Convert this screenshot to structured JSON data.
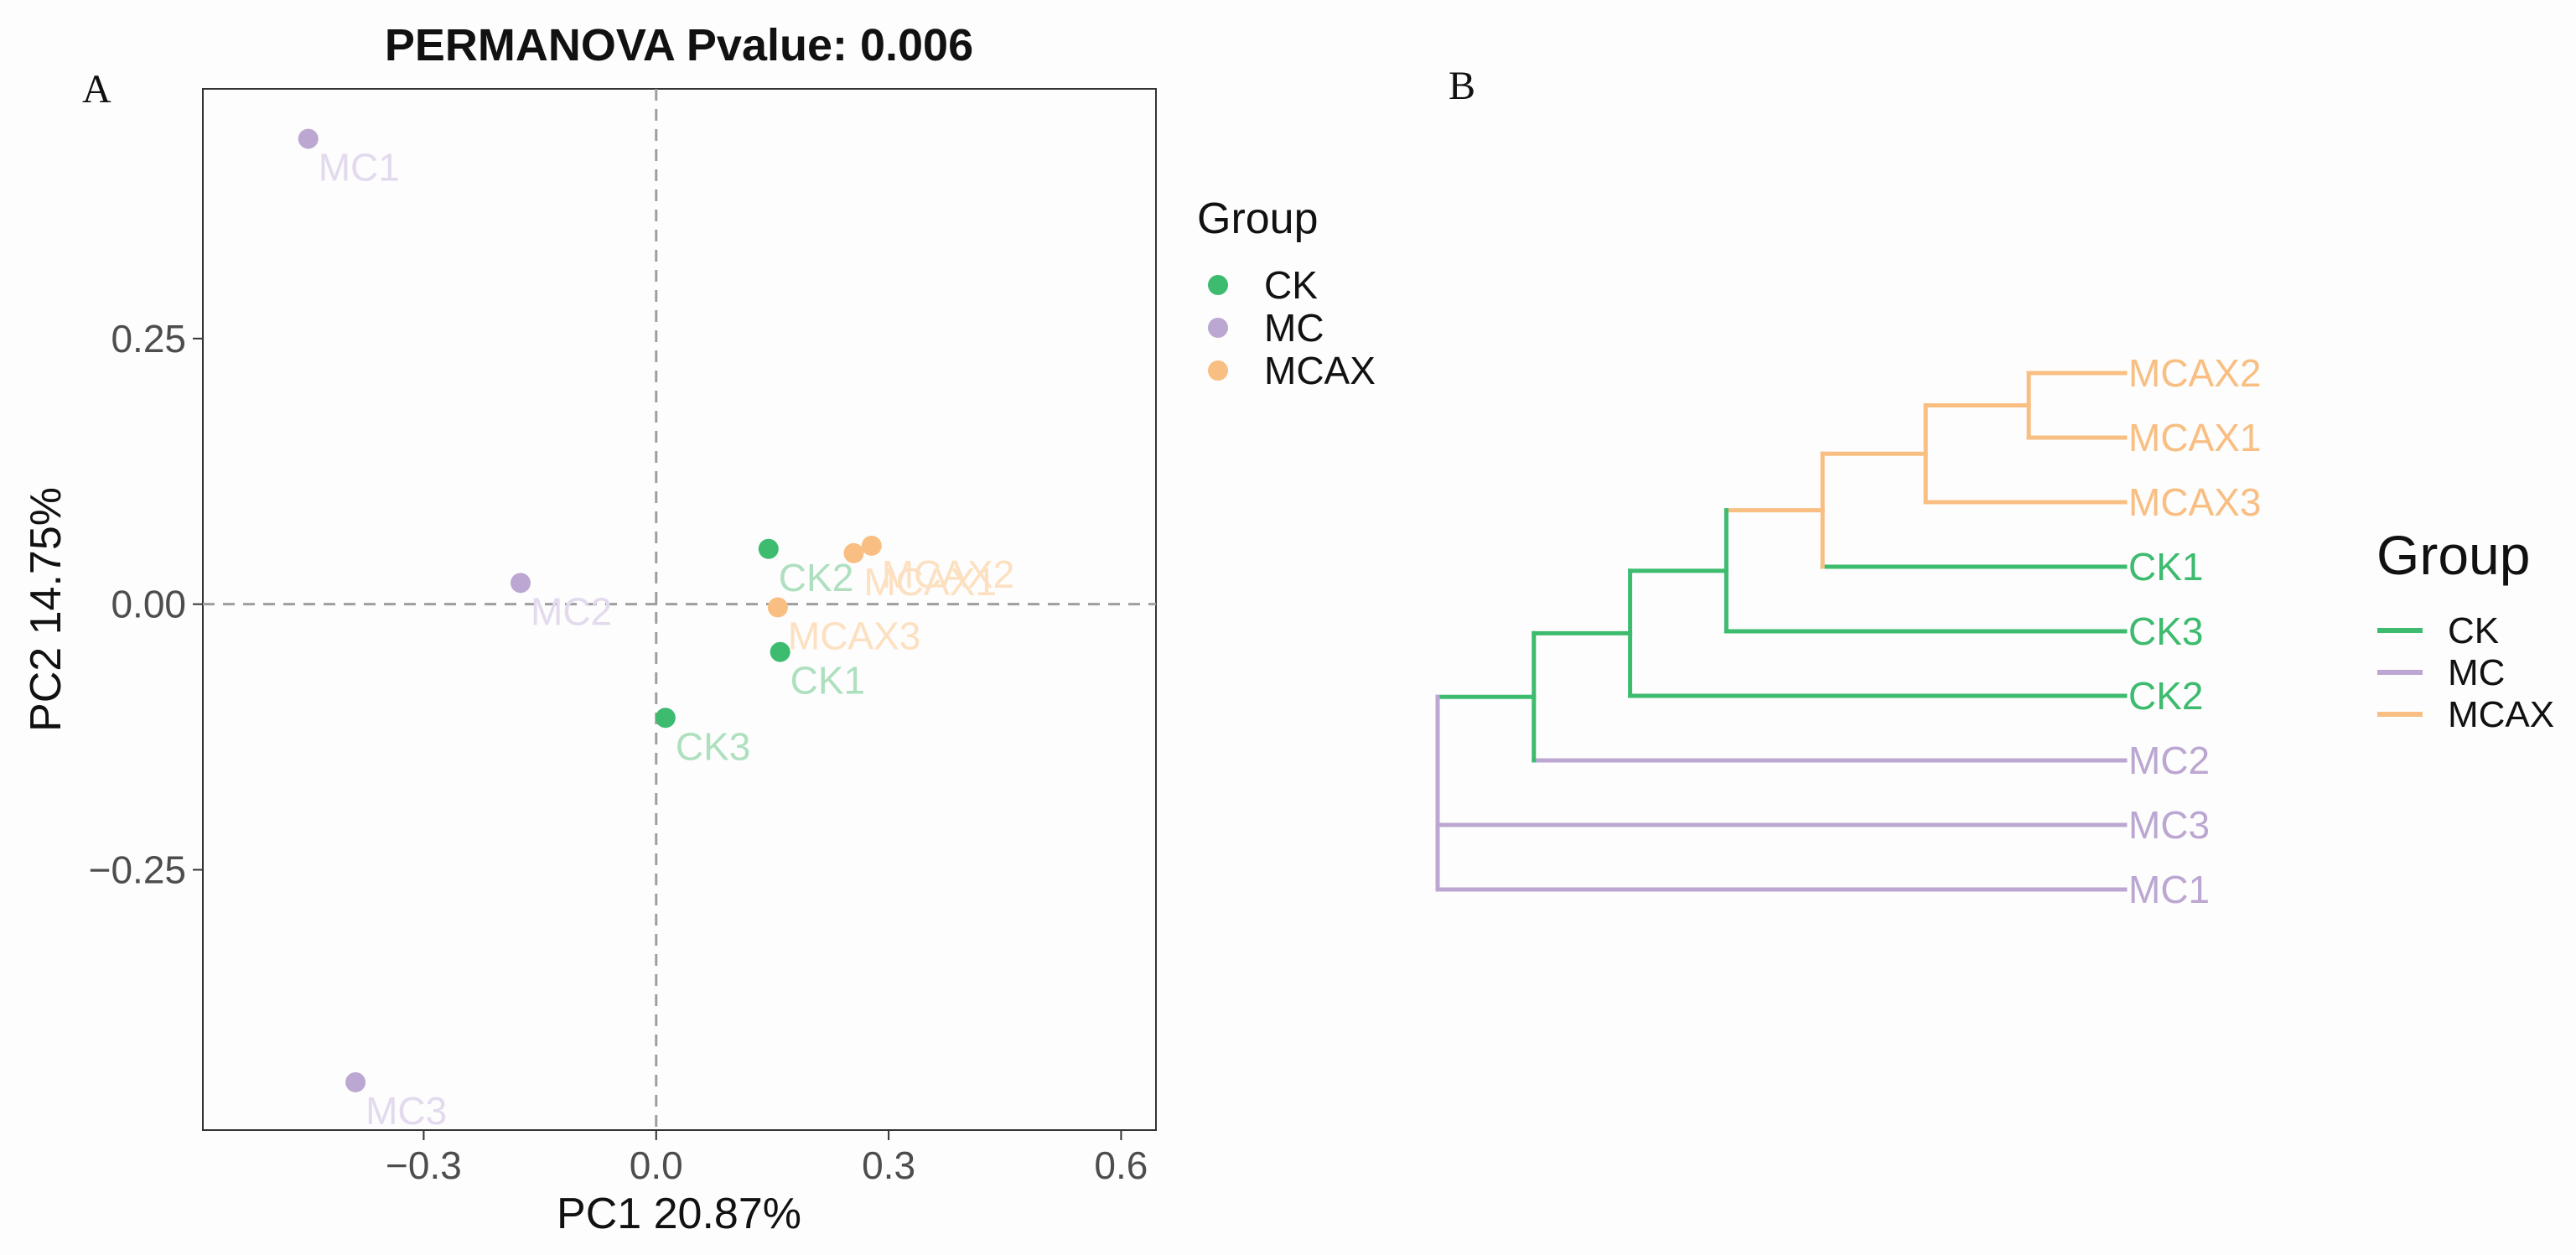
{
  "colors": {
    "CK": "#3dbb6e",
    "MC": "#bba7d1",
    "MCAX": "#f9be82",
    "CK_light": "#aee0bf",
    "MC_light": "#e3daee",
    "MCAX_light": "#fde0c0",
    "grid_dash": "#9e9e9e"
  },
  "panel_a": {
    "letter": "A"
  },
  "panel_b": {
    "letter": "B"
  },
  "chart_data": [
    {
      "type": "scatter",
      "title": "PERMANOVA Pvalue: 0.006",
      "xlabel": "PC1 20.87%",
      "ylabel": "PC2 14.75%",
      "xlim": [
        -0.585,
        0.645
      ],
      "ylim": [
        -0.495,
        0.485
      ],
      "xticks": [
        -0.3,
        0.0,
        0.3,
        0.6
      ],
      "xtick_labels": [
        "−0.3",
        "0.0",
        "0.3",
        "0.6"
      ],
      "yticks": [
        -0.25,
        0.0,
        0.25
      ],
      "ytick_labels": [
        "−0.25",
        "0.00",
        "0.25"
      ],
      "reference_lines": {
        "x": 0,
        "y": 0
      },
      "legend": {
        "title": "Group",
        "position": "right",
        "entries": [
          "CK",
          "MC",
          "MCAX"
        ]
      },
      "points": [
        {
          "label": "MC1",
          "group": "MC",
          "x": -0.449,
          "y": 0.438
        },
        {
          "label": "MC2",
          "group": "MC",
          "x": -0.175,
          "y": 0.02
        },
        {
          "label": "MC3",
          "group": "MC",
          "x": -0.388,
          "y": -0.45
        },
        {
          "label": "CK1",
          "group": "CK",
          "x": 0.16,
          "y": -0.045
        },
        {
          "label": "CK2",
          "group": "CK",
          "x": 0.145,
          "y": 0.052
        },
        {
          "label": "CK3",
          "group": "CK",
          "x": 0.012,
          "y": -0.107
        },
        {
          "label": "MCAX1",
          "group": "MCAX",
          "x": 0.255,
          "y": 0.048
        },
        {
          "label": "MCAX2",
          "group": "MCAX",
          "x": 0.278,
          "y": 0.055
        },
        {
          "label": "MCAX3",
          "group": "MCAX",
          "x": 0.157,
          "y": -0.003
        }
      ]
    },
    {
      "type": "dendrogram",
      "legend": {
        "title": "Group",
        "position": "right",
        "entries": [
          "CK",
          "MC",
          "MCAX"
        ]
      },
      "leaf_order": [
        "MCAX2",
        "MCAX1",
        "MCAX3",
        "CK1",
        "CK3",
        "CK2",
        "MC2",
        "MC3",
        "MC1"
      ],
      "leaf_groups": {
        "MCAX2": "MCAX",
        "MCAX1": "MCAX",
        "MCAX3": "MCAX",
        "CK1": "CK",
        "CK3": "CK",
        "CK2": "CK",
        "MC2": "MC",
        "MC3": "MC",
        "MC1": "MC"
      },
      "merges": [
        {
          "id": "n1",
          "children": [
            "MCAX2",
            "MCAX1"
          ],
          "height": 0.14,
          "group": "MCAX"
        },
        {
          "id": "n2",
          "children": [
            "n1",
            "MCAX3"
          ],
          "height": 0.29,
          "group": "MCAX"
        },
        {
          "id": "n3",
          "children": [
            "n2",
            "CK1"
          ],
          "height": 0.44,
          "group": "MCAX"
        },
        {
          "id": "n4",
          "children": [
            "n3",
            "CK3"
          ],
          "height": 0.58,
          "group": "CK"
        },
        {
          "id": "n5",
          "children": [
            "n4",
            "CK2"
          ],
          "height": 0.72,
          "group": "CK"
        },
        {
          "id": "n6",
          "children": [
            "n5",
            "MC2"
          ],
          "height": 0.86,
          "group": "CK"
        },
        {
          "id": "root",
          "children": [
            "n6",
            "MC3",
            "MC1"
          ],
          "height": 1.0,
          "group": "MC"
        }
      ]
    }
  ]
}
